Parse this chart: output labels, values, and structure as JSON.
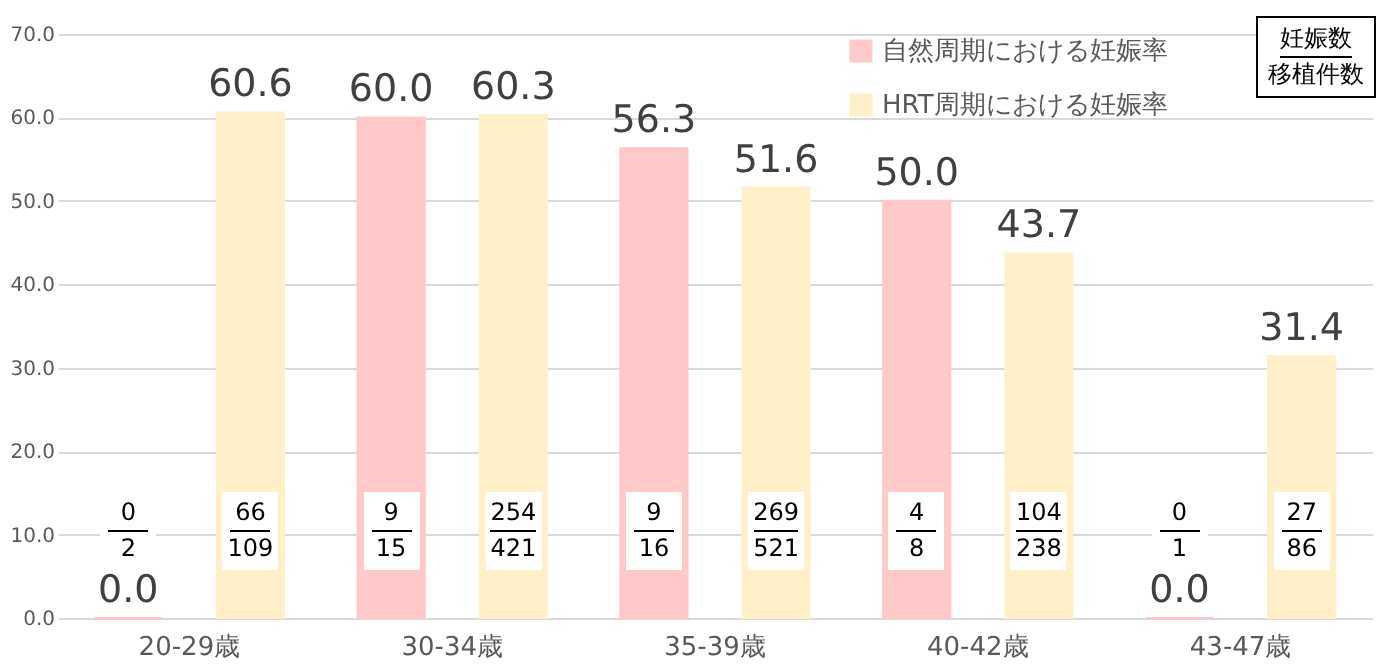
{
  "chart_data": {
    "type": "bar",
    "categories": [
      "20-29歳",
      "30-34歳",
      "35-39歳",
      "40-42歳",
      "43-47歳"
    ],
    "series": [
      {
        "name": "自然周期における妊娠率",
        "color": "#ffc9c9",
        "values": [
          0.0,
          60.0,
          56.3,
          50.0,
          0.0
        ],
        "value_labels": [
          "0.0",
          "60.0",
          "56.3",
          "50.0",
          "0.0"
        ]
      },
      {
        "name": "HRT周期における妊娠率",
        "color": "#fff0c9",
        "values": [
          60.6,
          60.3,
          51.6,
          43.7,
          31.4
        ],
        "value_labels": [
          "60.6",
          "60.3",
          "51.6",
          "43.7",
          "31.4"
        ]
      }
    ],
    "ylim": [
      0,
      70
    ],
    "yticks": [
      {
        "value": 0,
        "label": "0.0"
      },
      {
        "value": 10,
        "label": "10.0"
      },
      {
        "value": 20,
        "label": "20.0"
      },
      {
        "value": 30,
        "label": "30.0"
      },
      {
        "value": 40,
        "label": "40.0"
      },
      {
        "value": 50,
        "label": "50.0"
      },
      {
        "value": 60,
        "label": "60.0"
      },
      {
        "value": 70,
        "label": "70.0"
      }
    ],
    "grid": "y",
    "legend": "top right",
    "annotations": [
      "0\n2",
      "66\n109",
      "9\n15",
      "254\n421",
      "9\n16",
      "269\n521",
      "4\n8",
      "104\n238",
      "0\n1",
      "27\n86",
      "妊娠数",
      "移植件数"
    ]
  }
}
